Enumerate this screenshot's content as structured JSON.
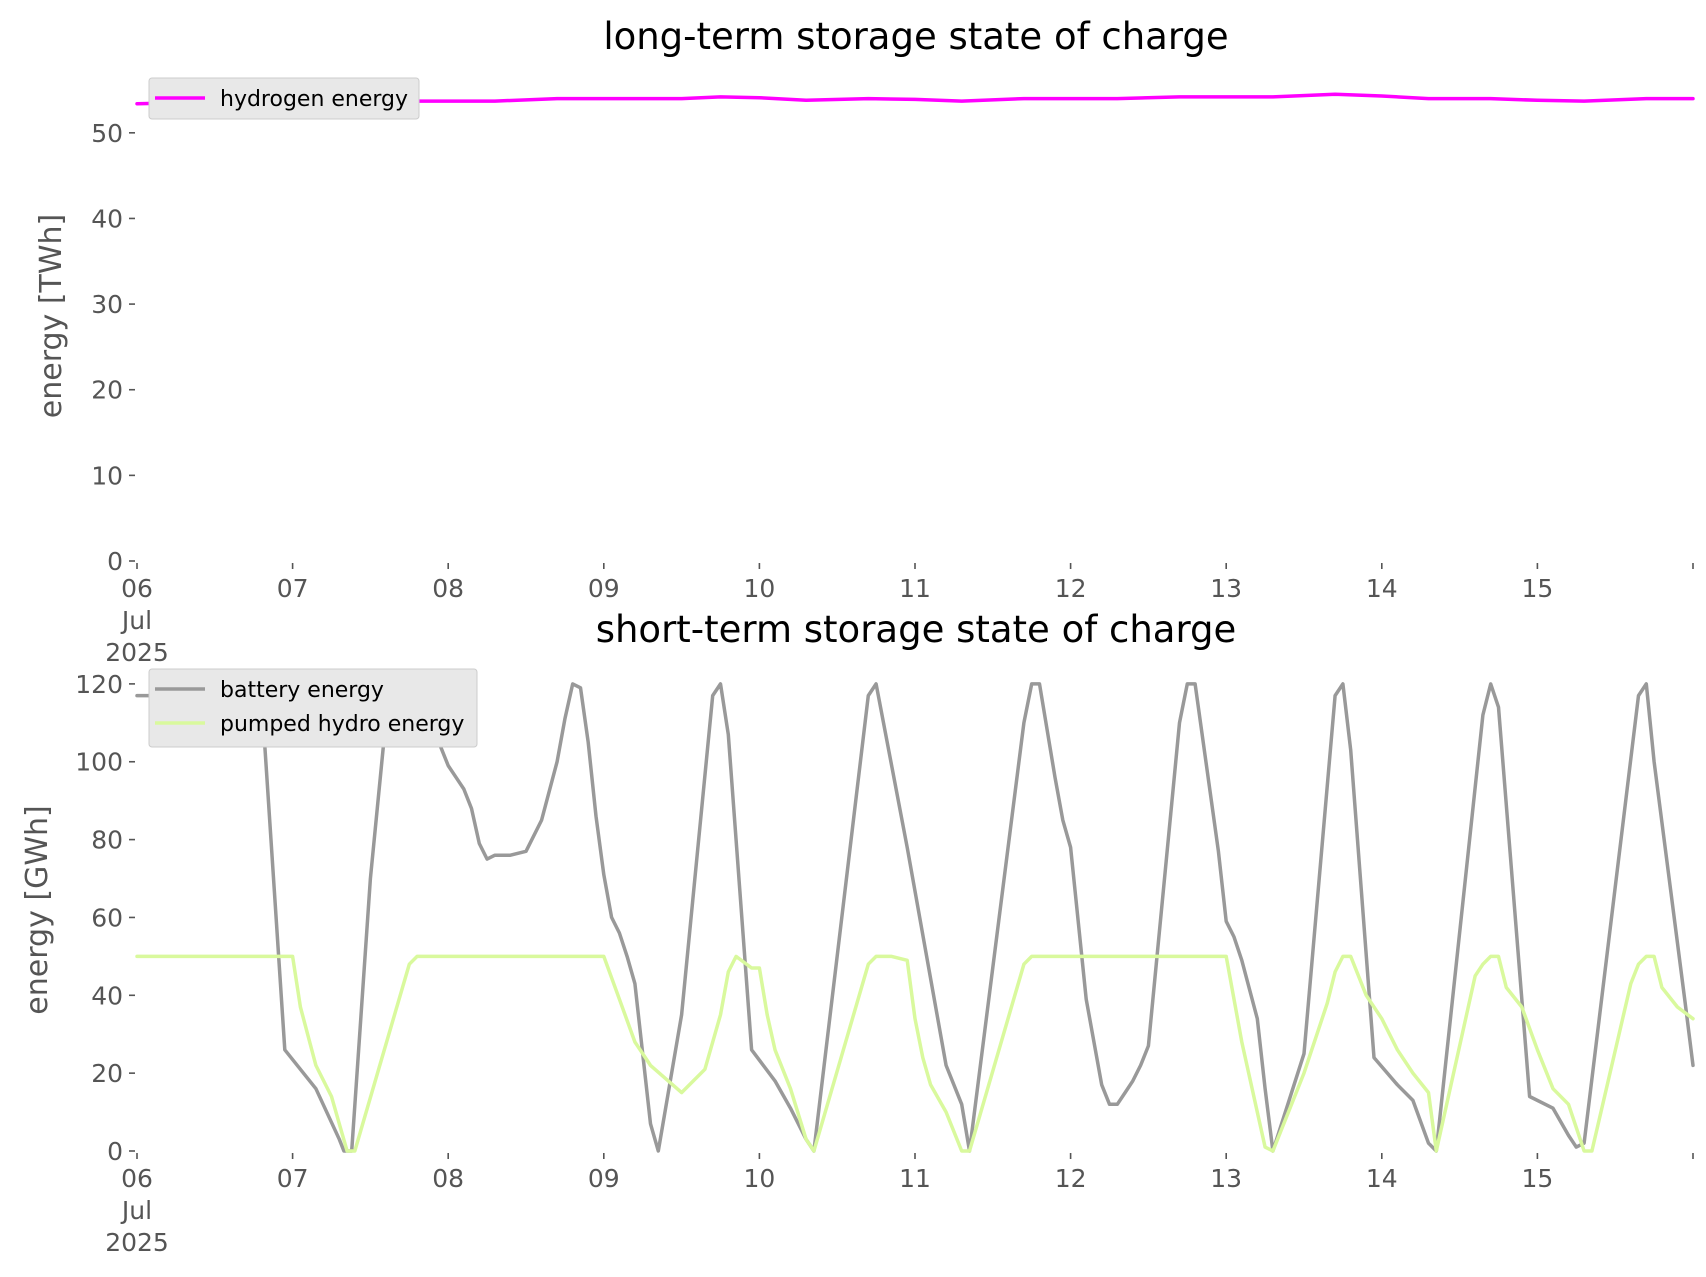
{
  "chart_data": [
    {
      "type": "line",
      "title": "long-term storage state of charge",
      "ylabel": "energy [TWh]",
      "xlabel": "",
      "x_start": "2025-07-06",
      "x_end": "2025-07-16",
      "x_ticks": [
        "06\nJul\n2025",
        "07",
        "08",
        "09",
        "10",
        "11",
        "12",
        "13",
        "14",
        "15"
      ],
      "ylim": [
        0,
        55
      ],
      "y_ticks": [
        0,
        10,
        20,
        30,
        40,
        50
      ],
      "grid": false,
      "legend": "top-left",
      "series": [
        {
          "name": "hydrogen energy",
          "color": "#ff00ff",
          "x_days": [
            0,
            0.5,
            1,
            1.5,
            2,
            2.3,
            2.7,
            3,
            3.5,
            3.75,
            4,
            4.3,
            4.7,
            5,
            5.3,
            5.7,
            6,
            6.3,
            6.7,
            7,
            7.3,
            7.7,
            8,
            8.3,
            8.7,
            9,
            9.3,
            9.7,
            10
          ],
          "values": [
            53.4,
            53.6,
            53.6,
            53.7,
            53.7,
            53.7,
            54.0,
            54.0,
            54.0,
            54.2,
            54.1,
            53.8,
            54.0,
            53.9,
            53.7,
            54.0,
            54.0,
            54.0,
            54.2,
            54.2,
            54.2,
            54.5,
            54.3,
            54.0,
            54.0,
            53.8,
            53.7,
            54.0,
            54.0
          ]
        }
      ]
    },
    {
      "type": "line",
      "title": "short-term storage state of charge",
      "ylabel": "energy [GWh]",
      "xlabel": "",
      "x_start": "2025-07-06",
      "x_end": "2025-07-16",
      "x_ticks": [
        "06\nJul\n2025",
        "07",
        "08",
        "09",
        "10",
        "11",
        "12",
        "13",
        "14",
        "15"
      ],
      "ylim": [
        0,
        121
      ],
      "y_ticks": [
        0,
        20,
        40,
        60,
        80,
        100,
        120
      ],
      "grid": false,
      "legend": "top-left",
      "series": [
        {
          "name": "battery energy",
          "color": "#999999",
          "x_days": [
            0,
            0.5,
            0.7,
            0.8,
            0.95,
            1.15,
            1.3,
            1.33,
            1.38,
            1.5,
            1.62,
            1.72,
            1.8,
            1.85,
            1.9,
            1.95,
            2.0,
            2.05,
            2.1,
            2.15,
            2.2,
            2.25,
            2.3,
            2.4,
            2.5,
            2.6,
            2.7,
            2.75,
            2.8,
            2.85,
            2.9,
            2.95,
            3.0,
            3.05,
            3.1,
            3.15,
            3.2,
            3.3,
            3.35,
            3.5,
            3.7,
            3.75,
            3.8,
            3.95,
            4.1,
            4.2,
            4.3,
            4.35,
            4.7,
            4.75,
            4.95,
            5.2,
            5.3,
            5.35,
            5.7,
            5.75,
            5.8,
            5.9,
            5.95,
            6.0,
            6.1,
            6.2,
            6.25,
            6.3,
            6.35,
            6.4,
            6.45,
            6.5,
            6.7,
            6.75,
            6.8,
            6.95,
            7.0,
            7.05,
            7.1,
            7.2,
            7.25,
            7.3,
            7.5,
            7.7,
            7.75,
            7.8,
            7.95,
            8.1,
            8.2,
            8.3,
            8.35,
            8.65,
            8.7,
            8.75,
            8.95,
            9.1,
            9.2,
            9.25,
            9.3,
            9.65,
            9.7,
            9.75,
            9.95,
            10.0
          ],
          "values": [
            117,
            117,
            119,
            117,
            26,
            16,
            3,
            0,
            0,
            70,
            119,
            120,
            112,
            111,
            113,
            104,
            99,
            96,
            93,
            88,
            79,
            75,
            76,
            76,
            77,
            85,
            100,
            111,
            120,
            119,
            105,
            86,
            71,
            60,
            56,
            50,
            43,
            7,
            0,
            35,
            117,
            120,
            107,
            26,
            18,
            11,
            3,
            0,
            117,
            120,
            78,
            22,
            12,
            0,
            110,
            120,
            120,
            96,
            85,
            78,
            39,
            17,
            12,
            12,
            15,
            18,
            22,
            27,
            110,
            120,
            120,
            77,
            59,
            55,
            49,
            34,
            16,
            0,
            25,
            117,
            120,
            103,
            24,
            17,
            13,
            2,
            0,
            112,
            120,
            114,
            14,
            11,
            4,
            1,
            2,
            117,
            120,
            100,
            38,
            22
          ]
        },
        {
          "name": "pumped hydro energy",
          "color": "#d9f99d",
          "x_days": [
            0,
            0.95,
            1.0,
            1.05,
            1.15,
            1.25,
            1.3,
            1.35,
            1.4,
            1.75,
            1.8,
            2.9,
            3.0,
            3.1,
            3.2,
            3.3,
            3.5,
            3.65,
            3.75,
            3.8,
            3.85,
            3.95,
            4.0,
            4.05,
            4.1,
            4.2,
            4.3,
            4.35,
            4.7,
            4.75,
            4.8,
            4.85,
            4.95,
            5.0,
            5.05,
            5.1,
            5.2,
            5.3,
            5.35,
            5.7,
            5.75,
            6.0,
            6.9,
            7.0,
            7.1,
            7.2,
            7.25,
            7.3,
            7.5,
            7.65,
            7.7,
            7.75,
            7.8,
            7.9,
            8.0,
            8.1,
            8.2,
            8.3,
            8.35,
            8.6,
            8.65,
            8.7,
            8.75,
            8.8,
            8.9,
            9.0,
            9.1,
            9.2,
            9.3,
            9.35,
            9.6,
            9.65,
            9.7,
            9.75,
            9.8,
            9.9,
            10.0
          ],
          "values": [
            50,
            50,
            50,
            37,
            22,
            14,
            7,
            0,
            0,
            48,
            50,
            50,
            50,
            39,
            28,
            22,
            15,
            21,
            35,
            46,
            50,
            47,
            47,
            35,
            26,
            16,
            3,
            0,
            48,
            50,
            50,
            50,
            49,
            34,
            24,
            17,
            10,
            0,
            0,
            48,
            50,
            50,
            50,
            50,
            28,
            10,
            1,
            0,
            20,
            38,
            46,
            50,
            50,
            40,
            34,
            26,
            20,
            15,
            0,
            45,
            48,
            50,
            50,
            42,
            37,
            26,
            16,
            12,
            0,
            0,
            43,
            48,
            50,
            50,
            42,
            37,
            34
          ]
        }
      ]
    }
  ]
}
